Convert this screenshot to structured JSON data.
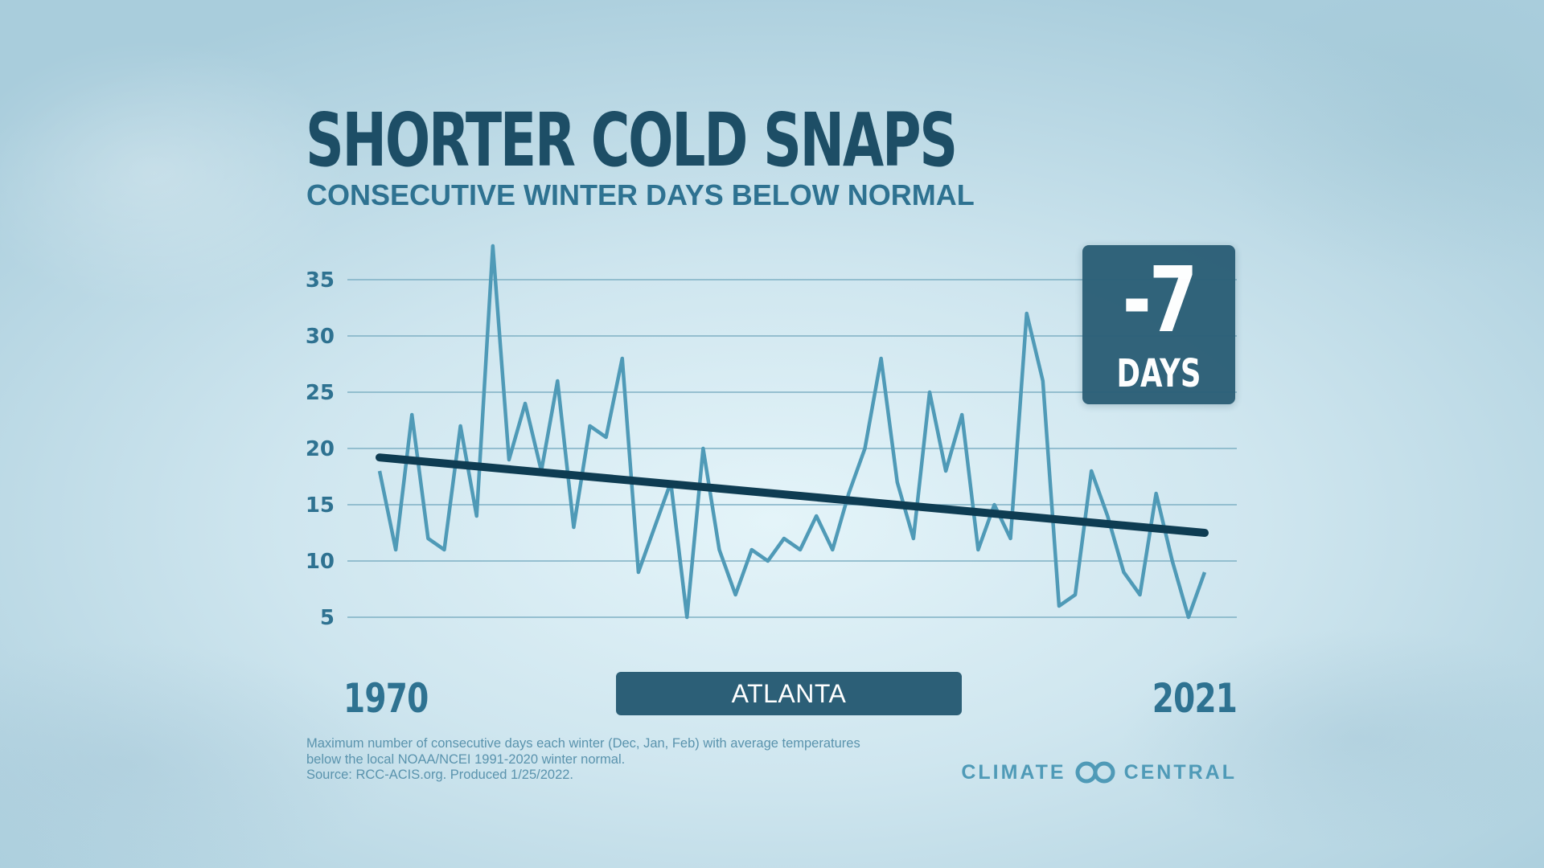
{
  "header": {
    "title": "SHORTER COLD SNAPS",
    "subtitle": "CONSECUTIVE WINTER DAYS BELOW NORMAL"
  },
  "callout": {
    "value": "-7",
    "unit": "DAYS"
  },
  "location": "ATLANTA",
  "footnote": {
    "line1": "Maximum number of consecutive days each winter (Dec, Jan, Feb) with average temperatures",
    "line2": "below the local NOAA/NCEI 1991-2020 winter normal.",
    "line3": "Source: RCC-ACIS.org. Produced 1/25/2022."
  },
  "brand": {
    "left": "CLIMATE",
    "right": "CENTRAL"
  },
  "colors": {
    "series": "#4f9ab7",
    "trend": "#0e3c52",
    "title": "#1d4e66",
    "accent_box": "#2c5f77"
  },
  "chart_data": {
    "type": "line",
    "title": "SHORTER COLD SNAPS",
    "subtitle": "CONSECUTIVE WINTER DAYS BELOW NORMAL",
    "xlabel": "",
    "ylabel": "",
    "x_tick_labels": [
      "1970",
      "2021"
    ],
    "x": [
      1970,
      1971,
      1972,
      1973,
      1974,
      1975,
      1976,
      1977,
      1978,
      1979,
      1980,
      1981,
      1982,
      1983,
      1984,
      1985,
      1986,
      1987,
      1988,
      1989,
      1990,
      1991,
      1992,
      1993,
      1994,
      1995,
      1996,
      1997,
      1998,
      1999,
      2000,
      2001,
      2002,
      2003,
      2004,
      2005,
      2006,
      2007,
      2008,
      2009,
      2010,
      2011,
      2012,
      2013,
      2014,
      2015,
      2016,
      2017,
      2018,
      2019,
      2020,
      2021
    ],
    "series": [
      {
        "values": [
          18,
          11,
          23,
          12,
          11,
          22,
          14,
          38,
          19,
          24,
          18,
          26,
          13,
          22,
          21,
          28,
          9,
          13,
          17,
          5,
          20,
          11,
          7,
          11,
          10,
          12,
          11,
          14,
          11,
          16,
          20,
          28,
          17,
          12,
          25,
          18,
          23,
          11,
          15,
          12,
          32,
          26,
          6,
          7,
          18,
          14,
          9,
          7,
          16,
          10,
          5,
          9
        ]
      }
    ],
    "trendline": {
      "start": 19.2,
      "end": 12.5
    },
    "yticks": [
      5,
      10,
      15,
      20,
      25,
      30,
      35
    ],
    "ylim": [
      4,
      38
    ],
    "xlim": [
      1970,
      2021
    ],
    "grid": true,
    "annotation": {
      "value": "-7",
      "unit": "DAYS"
    }
  }
}
